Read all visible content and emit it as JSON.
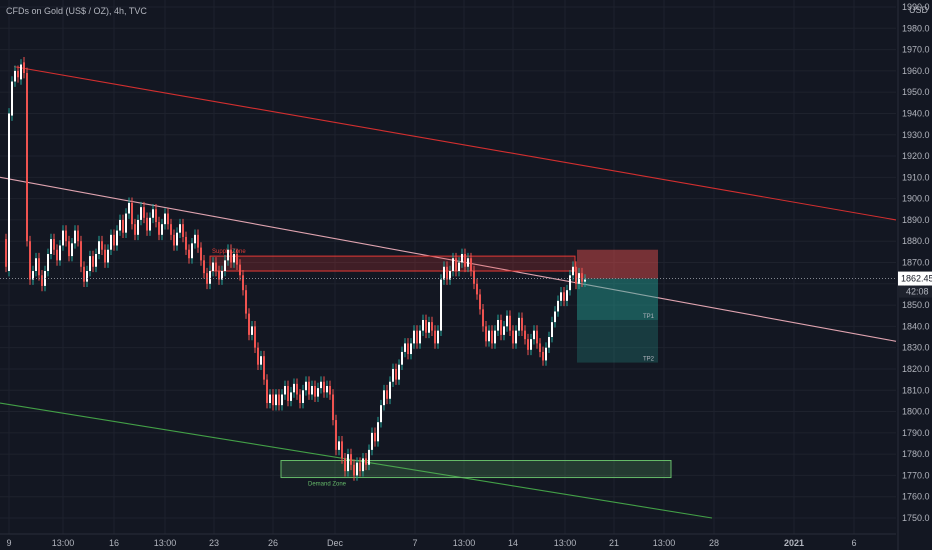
{
  "header": {
    "symbol_title": "CFDs on Gold (US$ / OZ), 4h, TVC"
  },
  "chart_data": {
    "type": "candlestick",
    "currency_label": "USD",
    "y_range": [
      1745,
      1995
    ],
    "y_ticks": [
      1750,
      1760,
      1770,
      1780,
      1790,
      1800,
      1810,
      1820,
      1830,
      1840,
      1850,
      1860,
      1870,
      1880,
      1890,
      1900,
      1910,
      1920,
      1930,
      1940,
      1950,
      1960,
      1970,
      1980,
      1990
    ],
    "x_ticks": [
      {
        "label": "9",
        "year": false
      },
      {
        "label": "13:00",
        "year": false
      },
      {
        "label": "16",
        "year": false
      },
      {
        "label": "13:00",
        "year": false
      },
      {
        "label": "23",
        "year": false
      },
      {
        "label": "26",
        "year": false
      },
      {
        "label": "Dec",
        "year": false
      },
      {
        "label": "7",
        "year": false
      },
      {
        "label": "13:00",
        "year": false
      },
      {
        "label": "14",
        "year": false
      },
      {
        "label": "13:00",
        "year": false
      },
      {
        "label": "21",
        "year": false
      },
      {
        "label": "13:00",
        "year": false
      },
      {
        "label": "28",
        "year": false
      },
      {
        "label": "2021",
        "year": true
      },
      {
        "label": "6",
        "year": false
      }
    ],
    "last_price": {
      "value": 1862.45,
      "label": "1862.45",
      "countdown": "42:08"
    },
    "zones": [
      {
        "name": "supply",
        "label": "Supply Zone",
        "from": 1866,
        "to": 1873,
        "color": "#e53935"
      },
      {
        "name": "demand",
        "label": "Demand Zone",
        "from": 1769,
        "to": 1777,
        "color": "#66bb6a"
      }
    ],
    "trade_setup": {
      "stop_from": 1863,
      "stop_to": 1876,
      "tp1": {
        "label": "TP1",
        "value": 1843
      },
      "tp2": {
        "label": "TP2",
        "value": 1823
      }
    },
    "trendlines": [
      {
        "name": "upper-channel",
        "color": "#d32f2f",
        "from": 1962,
        "to": 1890
      },
      {
        "name": "middle-trendline",
        "color": "#e0a4b0",
        "from": 1910,
        "to": 1833
      },
      {
        "name": "lower-channel",
        "color": "#43a047",
        "from": 1804,
        "to": 1750
      }
    ],
    "colors": {
      "up": "#26a69a",
      "down": "#ef5350",
      "candle_body": "#ffffff",
      "grid": "#1e222d",
      "text": "#b2b5be"
    },
    "candles": [
      [
        1881,
        1868
      ],
      [
        1866,
        1940
      ],
      [
        1939,
        1955
      ],
      [
        1955,
        1960
      ],
      [
        1960,
        1957
      ],
      [
        1956,
        1963
      ],
      [
        1964,
        1959
      ],
      [
        1959,
        1880
      ],
      [
        1880,
        1862
      ],
      [
        1862,
        1866
      ],
      [
        1866,
        1872
      ],
      [
        1872,
        1864
      ],
      [
        1864,
        1859
      ],
      [
        1859,
        1866
      ],
      [
        1866,
        1874
      ],
      [
        1874,
        1881
      ],
      [
        1881,
        1876
      ],
      [
        1876,
        1871
      ],
      [
        1871,
        1878
      ],
      [
        1878,
        1885
      ],
      [
        1885,
        1880
      ],
      [
        1880,
        1873
      ],
      [
        1873,
        1879
      ],
      [
        1879,
        1885
      ],
      [
        1885,
        1880
      ],
      [
        1880,
        1868
      ],
      [
        1868,
        1861
      ],
      [
        1861,
        1866
      ],
      [
        1866,
        1873
      ],
      [
        1873,
        1868
      ],
      [
        1868,
        1874
      ],
      [
        1874,
        1880
      ],
      [
        1880,
        1876
      ],
      [
        1876,
        1870
      ],
      [
        1870,
        1876
      ],
      [
        1876,
        1883
      ],
      [
        1883,
        1878
      ],
      [
        1878,
        1885
      ],
      [
        1885,
        1890
      ],
      [
        1890,
        1884
      ],
      [
        1884,
        1893
      ],
      [
        1893,
        1898
      ],
      [
        1898,
        1888
      ],
      [
        1888,
        1883
      ],
      [
        1883,
        1890
      ],
      [
        1890,
        1896
      ],
      [
        1896,
        1891
      ],
      [
        1891,
        1885
      ],
      [
        1885,
        1891
      ],
      [
        1891,
        1895
      ],
      [
        1895,
        1889
      ],
      [
        1889,
        1883
      ],
      [
        1883,
        1888
      ],
      [
        1888,
        1893
      ],
      [
        1893,
        1888
      ],
      [
        1888,
        1883
      ],
      [
        1883,
        1878
      ],
      [
        1878,
        1884
      ],
      [
        1884,
        1888
      ],
      [
        1888,
        1882
      ],
      [
        1882,
        1876
      ],
      [
        1876,
        1872
      ],
      [
        1872,
        1879
      ],
      [
        1879,
        1883
      ],
      [
        1883,
        1877
      ],
      [
        1877,
        1871
      ],
      [
        1871,
        1865
      ],
      [
        1865,
        1860
      ],
      [
        1860,
        1866
      ],
      [
        1866,
        1870
      ],
      [
        1870,
        1866
      ],
      [
        1866,
        1862
      ],
      [
        1862,
        1866
      ],
      [
        1866,
        1871
      ],
      [
        1871,
        1876
      ],
      [
        1876,
        1870
      ],
      [
        1870,
        1874
      ],
      [
        1874,
        1869
      ],
      [
        1869,
        1864
      ],
      [
        1864,
        1857
      ],
      [
        1857,
        1846
      ],
      [
        1846,
        1836
      ],
      [
        1836,
        1840
      ],
      [
        1840,
        1830
      ],
      [
        1830,
        1822
      ],
      [
        1822,
        1826
      ],
      [
        1826,
        1815
      ],
      [
        1815,
        1804
      ],
      [
        1804,
        1808
      ],
      [
        1808,
        1803
      ],
      [
        1803,
        1808
      ],
      [
        1808,
        1803
      ],
      [
        1803,
        1808
      ],
      [
        1808,
        1812
      ],
      [
        1812,
        1805
      ],
      [
        1805,
        1809
      ],
      [
        1809,
        1813
      ],
      [
        1813,
        1808
      ],
      [
        1808,
        1804
      ],
      [
        1804,
        1810
      ],
      [
        1810,
        1814
      ],
      [
        1814,
        1808
      ],
      [
        1808,
        1812
      ],
      [
        1812,
        1807
      ],
      [
        1807,
        1811
      ],
      [
        1811,
        1814
      ],
      [
        1814,
        1809
      ],
      [
        1809,
        1812
      ],
      [
        1812,
        1808
      ],
      [
        1808,
        1796
      ],
      [
        1796,
        1782
      ],
      [
        1782,
        1786
      ],
      [
        1786,
        1778
      ],
      [
        1778,
        1772
      ],
      [
        1772,
        1780
      ],
      [
        1780,
        1775
      ],
      [
        1775,
        1770
      ],
      [
        1770,
        1776
      ],
      [
        1776,
        1772
      ],
      [
        1772,
        1778
      ],
      [
        1778,
        1775
      ],
      [
        1775,
        1782
      ],
      [
        1782,
        1790
      ],
      [
        1790,
        1786
      ],
      [
        1786,
        1795
      ],
      [
        1795,
        1803
      ],
      [
        1803,
        1810
      ],
      [
        1810,
        1806
      ],
      [
        1806,
        1814
      ],
      [
        1814,
        1820
      ],
      [
        1820,
        1815
      ],
      [
        1815,
        1822
      ],
      [
        1822,
        1828
      ],
      [
        1828,
        1832
      ],
      [
        1832,
        1827
      ],
      [
        1827,
        1832
      ],
      [
        1832,
        1838
      ],
      [
        1838,
        1832
      ],
      [
        1832,
        1838
      ],
      [
        1838,
        1843
      ],
      [
        1843,
        1837
      ],
      [
        1837,
        1842
      ],
      [
        1842,
        1838
      ],
      [
        1838,
        1832
      ],
      [
        1832,
        1838
      ],
      [
        1838,
        1862
      ],
      [
        1862,
        1868
      ],
      [
        1868,
        1862
      ],
      [
        1862,
        1866
      ],
      [
        1866,
        1872
      ],
      [
        1872,
        1866
      ],
      [
        1866,
        1870
      ],
      [
        1870,
        1874
      ],
      [
        1874,
        1868
      ],
      [
        1868,
        1872
      ],
      [
        1872,
        1866
      ],
      [
        1866,
        1860
      ],
      [
        1860,
        1855
      ],
      [
        1855,
        1848
      ],
      [
        1848,
        1840
      ],
      [
        1840,
        1833
      ],
      [
        1833,
        1838
      ],
      [
        1838,
        1832
      ],
      [
        1832,
        1838
      ],
      [
        1838,
        1843
      ],
      [
        1843,
        1836
      ],
      [
        1836,
        1840
      ],
      [
        1840,
        1845
      ],
      [
        1845,
        1838
      ],
      [
        1838,
        1832
      ],
      [
        1832,
        1838
      ],
      [
        1838,
        1844
      ],
      [
        1844,
        1838
      ],
      [
        1838,
        1834
      ],
      [
        1834,
        1829
      ],
      [
        1829,
        1834
      ],
      [
        1834,
        1838
      ],
      [
        1838,
        1832
      ],
      [
        1832,
        1828
      ],
      [
        1828,
        1824
      ],
      [
        1824,
        1830
      ],
      [
        1830,
        1835
      ],
      [
        1835,
        1842
      ],
      [
        1842,
        1847
      ],
      [
        1847,
        1852
      ],
      [
        1852,
        1856
      ],
      [
        1856,
        1852
      ],
      [
        1852,
        1857
      ],
      [
        1857,
        1864
      ],
      [
        1864,
        1868
      ],
      [
        1868,
        1860
      ],
      [
        1860,
        1865
      ],
      [
        1865,
        1861
      ],
      [
        1861,
        1862
      ]
    ]
  }
}
